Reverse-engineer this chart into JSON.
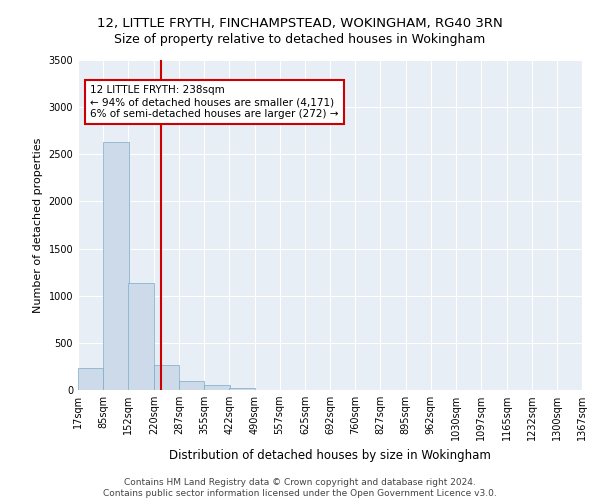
{
  "title": "12, LITTLE FRYTH, FINCHAMPSTEAD, WOKINGHAM, RG40 3RN",
  "subtitle": "Size of property relative to detached houses in Wokingham",
  "xlabel": "Distribution of detached houses by size in Wokingham",
  "ylabel": "Number of detached properties",
  "bar_color": "#ccdaea",
  "bar_edge_color": "#7aaac8",
  "vline_color": "#cc0000",
  "vline_x": 238,
  "annotation_text": "12 LITTLE FRYTH: 238sqm\n← 94% of detached houses are smaller (4,171)\n6% of semi-detached houses are larger (272) →",
  "annotation_box_color": "#ffffff",
  "annotation_box_edge": "#cc0000",
  "background_color": "#ffffff",
  "plot_bg_color": "#e8eef5",
  "bins": [
    17,
    85,
    152,
    220,
    287,
    355,
    422,
    490,
    557,
    625,
    692,
    760,
    827,
    895,
    962,
    1030,
    1097,
    1165,
    1232,
    1300,
    1367
  ],
  "bin_labels": [
    "17sqm",
    "85sqm",
    "152sqm",
    "220sqm",
    "287sqm",
    "355sqm",
    "422sqm",
    "490sqm",
    "557sqm",
    "625sqm",
    "692sqm",
    "760sqm",
    "827sqm",
    "895sqm",
    "962sqm",
    "1030sqm",
    "1097sqm",
    "1165sqm",
    "1232sqm",
    "1300sqm",
    "1367sqm"
  ],
  "bar_heights": [
    230,
    2630,
    1130,
    260,
    100,
    50,
    20,
    0,
    0,
    0,
    0,
    0,
    0,
    0,
    0,
    0,
    0,
    0,
    0,
    0
  ],
  "ylim": [
    0,
    3500
  ],
  "yticks": [
    0,
    500,
    1000,
    1500,
    2000,
    2500,
    3000,
    3500
  ],
  "footer": "Contains HM Land Registry data © Crown copyright and database right 2024.\nContains public sector information licensed under the Open Government Licence v3.0.",
  "title_fontsize": 9.5,
  "subtitle_fontsize": 9,
  "xlabel_fontsize": 8.5,
  "ylabel_fontsize": 8,
  "tick_fontsize": 7,
  "annotation_fontsize": 7.5,
  "footer_fontsize": 6.5
}
